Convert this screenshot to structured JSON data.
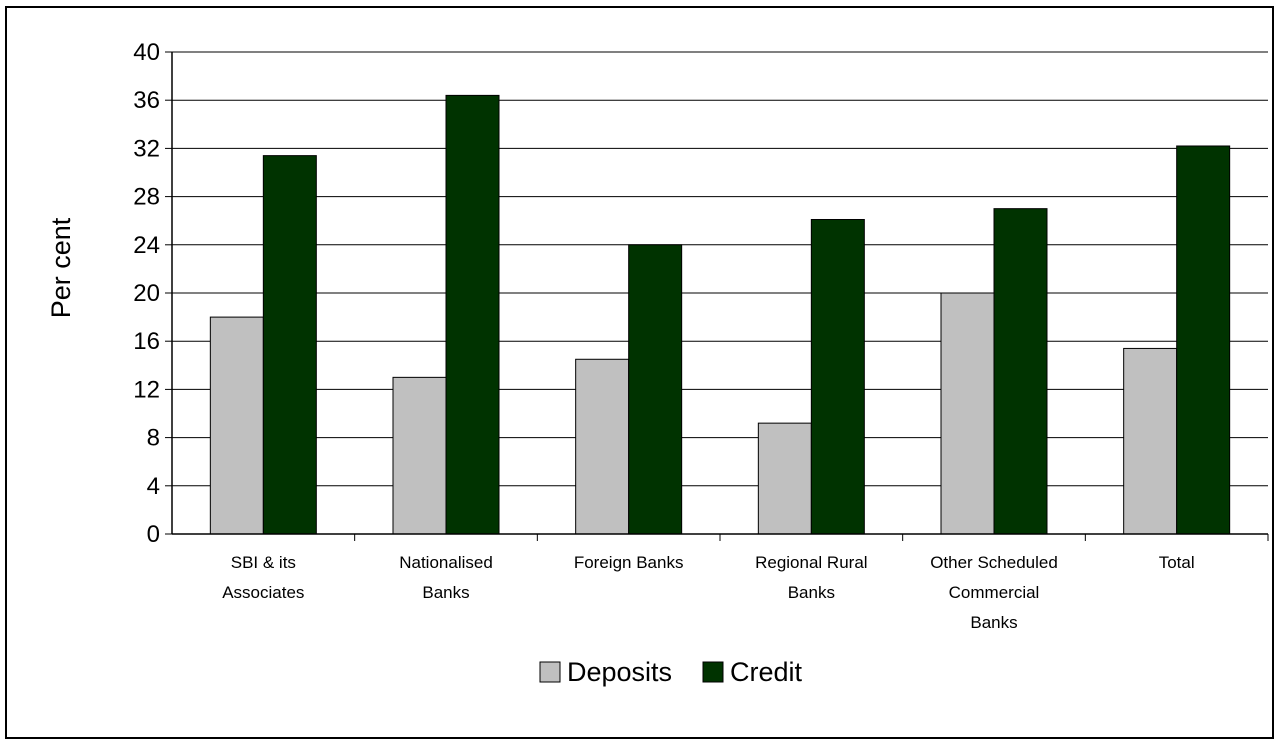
{
  "chart_data": {
    "type": "bar",
    "title": "",
    "xlabel": "",
    "ylabel": "Per cent",
    "ylim": [
      0,
      40
    ],
    "yticks": [
      0,
      4,
      8,
      12,
      16,
      20,
      24,
      28,
      32,
      36,
      40
    ],
    "grid": true,
    "legend_position": "bottom",
    "categories": [
      [
        "SBI & its",
        "Associates"
      ],
      [
        "Nationalised",
        "Banks"
      ],
      [
        "Foreign Banks"
      ],
      [
        "Regional Rural",
        "Banks"
      ],
      [
        "Other Scheduled",
        "Commercial",
        "Banks"
      ],
      [
        "Total"
      ]
    ],
    "series": [
      {
        "name": "Deposits",
        "color": "#c0c0c0",
        "values": [
          18.0,
          13.0,
          14.5,
          9.2,
          20.0,
          15.4
        ]
      },
      {
        "name": "Credit",
        "color": "#003300",
        "values": [
          31.4,
          36.4,
          24.0,
          26.1,
          27.0,
          32.2
        ]
      }
    ]
  }
}
